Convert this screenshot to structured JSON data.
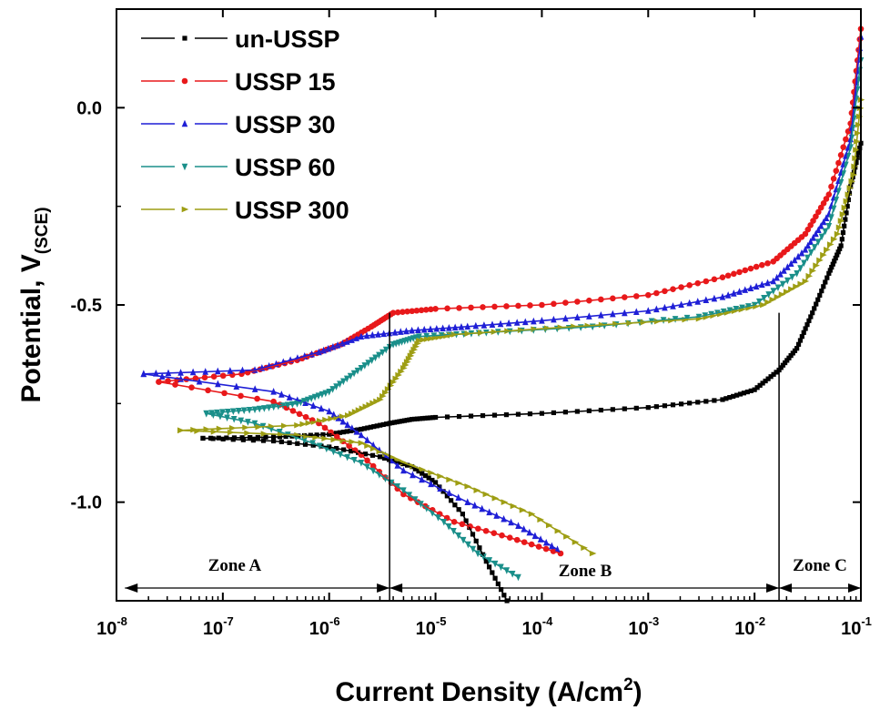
{
  "chart_data": {
    "type": "line",
    "xscale": "log",
    "xlim": [
      1e-08,
      0.1
    ],
    "ylim": [
      -1.25,
      0.25
    ],
    "grid": false,
    "legend": "top-left",
    "xlabel": "Current Density (A/cm",
    "xlabel_sup": "2",
    "xlabel_end": ")",
    "ylabel": "Potential, V",
    "ylabel_sub": "(SCE)",
    "xticks": [
      {
        "base": "10",
        "exp": "-8",
        "value": 1e-08
      },
      {
        "base": "10",
        "exp": "-7",
        "value": 1e-07
      },
      {
        "base": "10",
        "exp": "-6",
        "value": 1e-06
      },
      {
        "base": "10",
        "exp": "-5",
        "value": 1e-05
      },
      {
        "base": "10",
        "exp": "-4",
        "value": 0.0001
      },
      {
        "base": "10",
        "exp": "-3",
        "value": 0.001
      },
      {
        "base": "10",
        "exp": "-2",
        "value": 0.01
      },
      {
        "base": "10",
        "exp": "-1",
        "value": 0.1
      }
    ],
    "yticks": [
      {
        "label": "0.0",
        "value": 0.0
      },
      {
        "label": "-0.5",
        "value": -0.5
      },
      {
        "label": "-1.0",
        "value": -1.0
      }
    ],
    "zones": [
      {
        "label": "Zone A",
        "from": 1.2e-08,
        "to": 3.7e-06
      },
      {
        "label": "Zone B",
        "from": 3.7e-06,
        "to": 0.017
      },
      {
        "label": "Zone C",
        "from": 0.017,
        "to": 0.1
      }
    ],
    "zone_boundaries": [
      3.7e-06,
      0.017
    ],
    "series": [
      {
        "name": "un-USSP",
        "color": "#000000",
        "marker": "square",
        "anodic": [
          [
            6.5e-08,
            -0.838
          ],
          [
            3e-07,
            -0.835
          ],
          [
            1e-06,
            -0.828
          ],
          [
            2e-06,
            -0.815
          ],
          [
            3.7e-06,
            -0.8
          ],
          [
            6e-06,
            -0.79
          ],
          [
            1e-05,
            -0.785
          ],
          [
            0.0001,
            -0.775
          ],
          [
            0.001,
            -0.76
          ],
          [
            0.005,
            -0.74
          ],
          [
            0.01,
            -0.715
          ],
          [
            0.017,
            -0.665
          ],
          [
            0.025,
            -0.61
          ],
          [
            0.035,
            -0.52
          ],
          [
            0.05,
            -0.42
          ],
          [
            0.065,
            -0.35
          ],
          [
            0.08,
            -0.2
          ],
          [
            0.1,
            -0.09
          ]
        ],
        "cathodic": [
          [
            6.5e-08,
            -0.838
          ],
          [
            3e-07,
            -0.845
          ],
          [
            1e-06,
            -0.86
          ],
          [
            3e-06,
            -0.885
          ],
          [
            6e-06,
            -0.91
          ],
          [
            1e-05,
            -0.95
          ],
          [
            1.8e-05,
            -1.03
          ],
          [
            3e-05,
            -1.15
          ],
          [
            4.7e-05,
            -1.25
          ]
        ]
      },
      {
        "name": "USSP 15",
        "color": "#e8191b",
        "marker": "circle",
        "anodic": [
          [
            2.5e-08,
            -0.695
          ],
          [
            1.5e-07,
            -0.675
          ],
          [
            5e-07,
            -0.64
          ],
          [
            1.3e-06,
            -0.6
          ],
          [
            2.5e-06,
            -0.555
          ],
          [
            4e-06,
            -0.52
          ],
          [
            1e-05,
            -0.51
          ],
          [
            0.0001,
            -0.5
          ],
          [
            0.001,
            -0.475
          ],
          [
            0.005,
            -0.43
          ],
          [
            0.015,
            -0.39
          ],
          [
            0.03,
            -0.32
          ],
          [
            0.05,
            -0.22
          ],
          [
            0.08,
            -0.04
          ],
          [
            0.1,
            0.2
          ]
        ],
        "cathodic": [
          [
            2.5e-08,
            -0.695
          ],
          [
            3e-07,
            -0.745
          ],
          [
            8e-07,
            -0.8
          ],
          [
            2e-06,
            -0.88
          ],
          [
            5e-06,
            -0.98
          ],
          [
            1.5e-05,
            -1.05
          ],
          [
            5e-05,
            -1.09
          ],
          [
            0.00015,
            -1.13
          ]
        ]
      },
      {
        "name": "USSP 30",
        "color": "#1f1fd6",
        "marker": "triangle-up",
        "anodic": [
          [
            1.8e-08,
            -0.675
          ],
          [
            2e-07,
            -0.665
          ],
          [
            8e-07,
            -0.62
          ],
          [
            2e-06,
            -0.58
          ],
          [
            6e-06,
            -0.565
          ],
          [
            2e-05,
            -0.555
          ],
          [
            0.0001,
            -0.54
          ],
          [
            0.001,
            -0.515
          ],
          [
            0.005,
            -0.48
          ],
          [
            0.015,
            -0.44
          ],
          [
            0.03,
            -0.36
          ],
          [
            0.05,
            -0.27
          ],
          [
            0.08,
            -0.08
          ],
          [
            0.1,
            0.18
          ]
        ],
        "cathodic": [
          [
            1.8e-08,
            -0.675
          ],
          [
            3e-07,
            -0.72
          ],
          [
            1e-06,
            -0.77
          ],
          [
            2e-06,
            -0.83
          ],
          [
            5e-06,
            -0.92
          ],
          [
            2e-05,
            -1.0
          ],
          [
            6e-05,
            -1.06
          ],
          [
            0.00014,
            -1.12
          ]
        ]
      },
      {
        "name": "USSP 60",
        "color": "#1a8f8a",
        "marker": "triangle-down",
        "anodic": [
          [
            7e-08,
            -0.775
          ],
          [
            2e-07,
            -0.765
          ],
          [
            5e-07,
            -0.75
          ],
          [
            1e-06,
            -0.72
          ],
          [
            2e-06,
            -0.66
          ],
          [
            4e-06,
            -0.6
          ],
          [
            7e-06,
            -0.58
          ],
          [
            3e-05,
            -0.57
          ],
          [
            0.0003,
            -0.555
          ],
          [
            0.003,
            -0.53
          ],
          [
            0.01,
            -0.5
          ],
          [
            0.025,
            -0.42
          ],
          [
            0.05,
            -0.3
          ],
          [
            0.08,
            -0.1
          ],
          [
            0.1,
            0.12
          ]
        ],
        "cathodic": [
          [
            7e-08,
            -0.775
          ],
          [
            2e-07,
            -0.8
          ],
          [
            7e-07,
            -0.85
          ],
          [
            2e-06,
            -0.9
          ],
          [
            5e-06,
            -0.97
          ],
          [
            1.2e-05,
            -1.05
          ],
          [
            2.5e-05,
            -1.13
          ],
          [
            6e-05,
            -1.19
          ]
        ]
      },
      {
        "name": "USSP 300",
        "color": "#9e9e14",
        "marker": "triangle-right",
        "anodic": [
          [
            4e-08,
            -0.818
          ],
          [
            5e-07,
            -0.805
          ],
          [
            1.5e-06,
            -0.78
          ],
          [
            3e-06,
            -0.74
          ],
          [
            5e-06,
            -0.66
          ],
          [
            7e-06,
            -0.59
          ],
          [
            1.5e-05,
            -0.575
          ],
          [
            0.0002,
            -0.555
          ],
          [
            0.003,
            -0.535
          ],
          [
            0.012,
            -0.5
          ],
          [
            0.03,
            -0.44
          ],
          [
            0.06,
            -0.32
          ],
          [
            0.085,
            -0.17
          ],
          [
            0.1,
            0.02
          ]
        ],
        "cathodic": [
          [
            4e-08,
            -0.818
          ],
          [
            5e-07,
            -0.83
          ],
          [
            2e-06,
            -0.85
          ],
          [
            5e-06,
            -0.9
          ],
          [
            2e-05,
            -0.96
          ],
          [
            8e-05,
            -1.03
          ],
          [
            0.0003,
            -1.13
          ]
        ]
      }
    ]
  }
}
